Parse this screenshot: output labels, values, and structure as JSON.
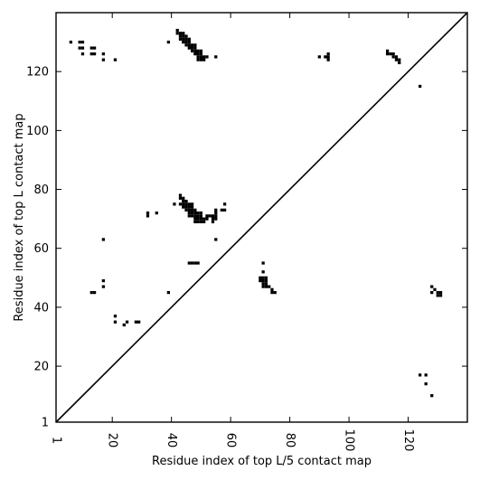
{
  "chart_data": {
    "type": "heatmap",
    "title": "",
    "xlabel": "Residue index of top L/5 contact map",
    "ylabel": "Residue index of top L contact map",
    "xlim": [
      1,
      140
    ],
    "ylim": [
      1,
      140
    ],
    "x_ticks": [
      {
        "value": 1,
        "label": "1"
      },
      {
        "value": 20,
        "label": "20"
      },
      {
        "value": 40,
        "label": "40"
      },
      {
        "value": 60,
        "label": "60"
      },
      {
        "value": 80,
        "label": "80"
      },
      {
        "value": 100,
        "label": "100"
      },
      {
        "value": 120,
        "label": "120"
      }
    ],
    "y_ticks": [
      {
        "value": 1,
        "label": "1"
      },
      {
        "value": 20,
        "label": "20"
      },
      {
        "value": 40,
        "label": "40"
      },
      {
        "value": 60,
        "label": "60"
      },
      {
        "value": 80,
        "label": "80"
      },
      {
        "value": 100,
        "label": "100"
      },
      {
        "value": 120,
        "label": "120"
      }
    ],
    "diagonal": true,
    "grid": false,
    "cell_color": "#000000",
    "background_color": "#ffffff",
    "contacts": [
      [
        6,
        130
      ],
      [
        9,
        130
      ],
      [
        10,
        130
      ],
      [
        9,
        128
      ],
      [
        10,
        128
      ],
      [
        10,
        126
      ],
      [
        13,
        128
      ],
      [
        14,
        128
      ],
      [
        13,
        126
      ],
      [
        14,
        126
      ],
      [
        17,
        126
      ],
      [
        17,
        124
      ],
      [
        21,
        124
      ],
      [
        39,
        130
      ],
      [
        42,
        134
      ],
      [
        42,
        133
      ],
      [
        43,
        133
      ],
      [
        44,
        133
      ],
      [
        43,
        132
      ],
      [
        44,
        132
      ],
      [
        45,
        132
      ],
      [
        43,
        131
      ],
      [
        44,
        131
      ],
      [
        45,
        131
      ],
      [
        46,
        131
      ],
      [
        44,
        130
      ],
      [
        45,
        130
      ],
      [
        46,
        130
      ],
      [
        45,
        129
      ],
      [
        46,
        129
      ],
      [
        47,
        129
      ],
      [
        48,
        129
      ],
      [
        46,
        128
      ],
      [
        47,
        128
      ],
      [
        48,
        128
      ],
      [
        47,
        127
      ],
      [
        48,
        127
      ],
      [
        49,
        127
      ],
      [
        50,
        127
      ],
      [
        48,
        126
      ],
      [
        49,
        126
      ],
      [
        50,
        126
      ],
      [
        49,
        125
      ],
      [
        50,
        125
      ],
      [
        51,
        125
      ],
      [
        52,
        125
      ],
      [
        49,
        124
      ],
      [
        50,
        124
      ],
      [
        51,
        124
      ],
      [
        55,
        125
      ],
      [
        90,
        125
      ],
      [
        92,
        125
      ],
      [
        93,
        125
      ],
      [
        93,
        126
      ],
      [
        93,
        124
      ],
      [
        113,
        127
      ],
      [
        113,
        126
      ],
      [
        114,
        126
      ],
      [
        115,
        126
      ],
      [
        115,
        125
      ],
      [
        116,
        125
      ],
      [
        116,
        124
      ],
      [
        117,
        124
      ],
      [
        117,
        123
      ],
      [
        124,
        115
      ],
      [
        32,
        72
      ],
      [
        32,
        71
      ],
      [
        35,
        72
      ],
      [
        41,
        75
      ],
      [
        43,
        78
      ],
      [
        43,
        77
      ],
      [
        44,
        77
      ],
      [
        44,
        76
      ],
      [
        45,
        76
      ],
      [
        43,
        75
      ],
      [
        44,
        75
      ],
      [
        45,
        75
      ],
      [
        46,
        75
      ],
      [
        47,
        75
      ],
      [
        44,
        74
      ],
      [
        45,
        74
      ],
      [
        46,
        74
      ],
      [
        47,
        74
      ],
      [
        45,
        73
      ],
      [
        46,
        73
      ],
      [
        47,
        73
      ],
      [
        48,
        73
      ],
      [
        46,
        72
      ],
      [
        47,
        72
      ],
      [
        48,
        72
      ],
      [
        49,
        72
      ],
      [
        50,
        72
      ],
      [
        46,
        71
      ],
      [
        47,
        71
      ],
      [
        48,
        71
      ],
      [
        49,
        71
      ],
      [
        50,
        71
      ],
      [
        52,
        71
      ],
      [
        53,
        71
      ],
      [
        54,
        71
      ],
      [
        55,
        71
      ],
      [
        48,
        70
      ],
      [
        49,
        70
      ],
      [
        50,
        70
      ],
      [
        51,
        70
      ],
      [
        52,
        70
      ],
      [
        54,
        70
      ],
      [
        55,
        70
      ],
      [
        55,
        72
      ],
      [
        55,
        73
      ],
      [
        48,
        69
      ],
      [
        49,
        69
      ],
      [
        50,
        69
      ],
      [
        51,
        69
      ],
      [
        54,
        69
      ],
      [
        58,
        75
      ],
      [
        57,
        73
      ],
      [
        58,
        73
      ],
      [
        55,
        63
      ],
      [
        17,
        63
      ],
      [
        46,
        55
      ],
      [
        47,
        55
      ],
      [
        48,
        55
      ],
      [
        49,
        55
      ],
      [
        71,
        55
      ],
      [
        71,
        52
      ],
      [
        70,
        50
      ],
      [
        71,
        50
      ],
      [
        72,
        50
      ],
      [
        70,
        49
      ],
      [
        71,
        49
      ],
      [
        72,
        49
      ],
      [
        71,
        48
      ],
      [
        72,
        48
      ],
      [
        73,
        47
      ],
      [
        71,
        47
      ],
      [
        72,
        47
      ],
      [
        74,
        46
      ],
      [
        74,
        45
      ],
      [
        75,
        45
      ],
      [
        17,
        49
      ],
      [
        17,
        47
      ],
      [
        13,
        45
      ],
      [
        14,
        45
      ],
      [
        39,
        45
      ],
      [
        21,
        37
      ],
      [
        21,
        35
      ],
      [
        25,
        35
      ],
      [
        24,
        34
      ],
      [
        28,
        35
      ],
      [
        29,
        35
      ],
      [
        128,
        47
      ],
      [
        129,
        46
      ],
      [
        128,
        45
      ],
      [
        130,
        45
      ],
      [
        131,
        45
      ],
      [
        130,
        44
      ],
      [
        131,
        44
      ],
      [
        124,
        17
      ],
      [
        126,
        17
      ],
      [
        126,
        14
      ],
      [
        128,
        10
      ]
    ]
  }
}
